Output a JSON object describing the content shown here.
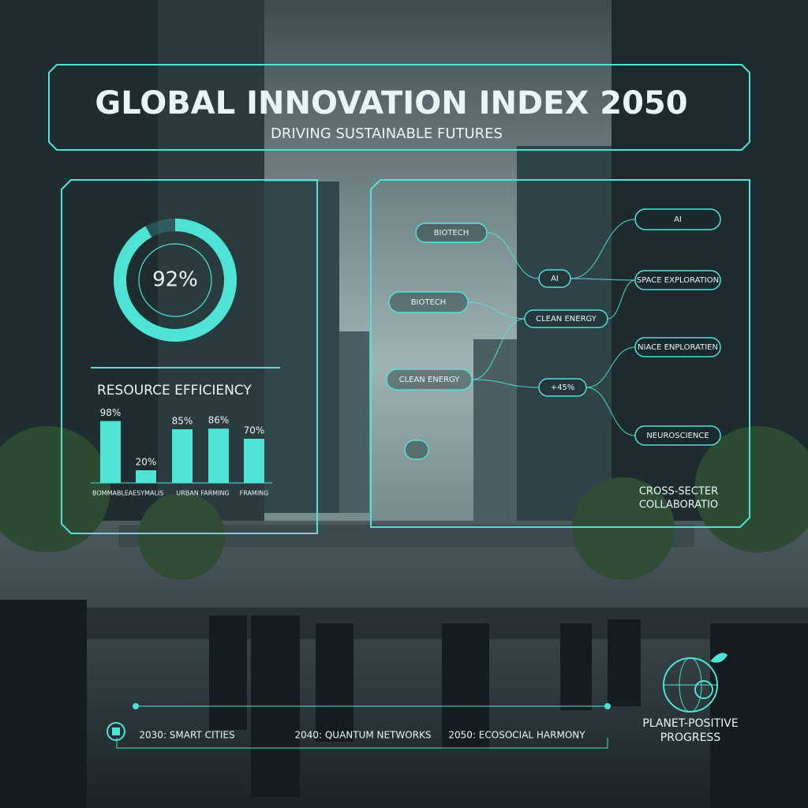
{
  "header": {
    "title": "GLOBAL INNOVATION INDEX 2050",
    "subtitle": "DRIVING SUSTAINABLE FUTURES"
  },
  "gauge": {
    "value": 92,
    "label": "92%"
  },
  "resource": {
    "title": "RESOURCE EFFICIENCY"
  },
  "chart_data": {
    "type": "bar",
    "categories": [
      "BOMMABLE",
      "AESYMALIS",
      null,
      "URBAN FARMING",
      "FRAMING"
    ],
    "values": [
      98,
      20,
      85,
      86,
      70
    ],
    "value_labels": [
      "98%",
      "20%",
      "85%",
      "86%",
      "70%"
    ],
    "color": "#4fe3d6",
    "ylim": [
      0,
      100
    ]
  },
  "network": {
    "nodes": [
      {
        "label": "BIOTECH"
      },
      {
        "label": "BIOTECH"
      },
      {
        "label": "CLEAN ENERGY"
      },
      {
        "label": "AI"
      },
      {
        "label": "CLEAN ENERGY"
      },
      {
        "label": "+45%"
      },
      {
        "label": "AI"
      },
      {
        "label": "SPACE EXPLORATION"
      },
      {
        "label": "NIACE ENPLORATIEN"
      },
      {
        "label": "NEUROSCIENCE"
      }
    ],
    "caption": [
      "CROSS-SECTER",
      "COLLABORATIO"
    ]
  },
  "timeline": [
    "2030: SMART CITIES",
    "2040: QUANTUM NETWORKS",
    "2050: ECOSOCIAL HARMONY"
  ],
  "badge": [
    "PLANET-POSITIVE",
    "PROGRESS"
  ]
}
